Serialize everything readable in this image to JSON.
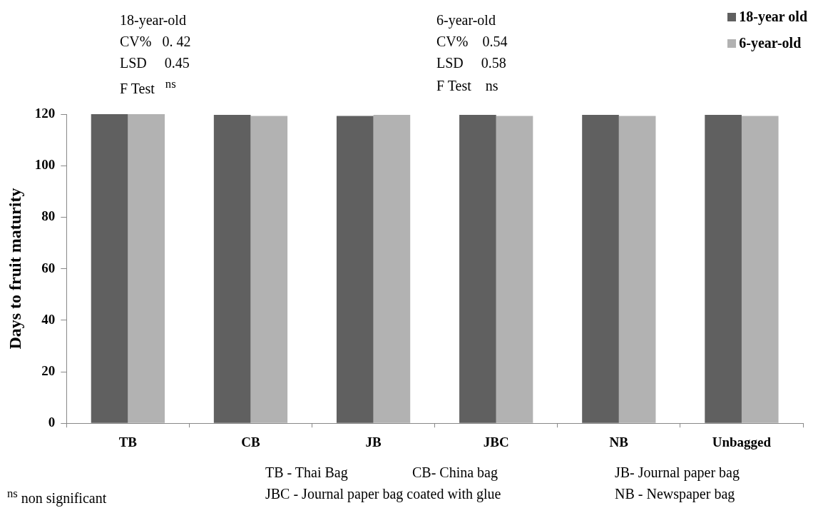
{
  "chart_data": {
    "type": "bar",
    "ylabel": "Days to fruit maturity",
    "categories": [
      "TB",
      "CB",
      "JB",
      "JBC",
      "NB",
      "Unbagged"
    ],
    "series": [
      {
        "name": "18-year old",
        "color": "#606060",
        "values": [
          120,
          119.7,
          119.3,
          119.7,
          119.7,
          119.7
        ]
      },
      {
        "name": "6-year-old",
        "color": "#b2b2b2",
        "values": [
          120,
          119.3,
          119.7,
          119.3,
          119.3,
          119.3
        ]
      }
    ],
    "ylim": [
      0,
      120
    ],
    "yticks": [
      0,
      20,
      40,
      60,
      80,
      100,
      120
    ],
    "grid": false,
    "legend": "top right",
    "annotations": [
      "18-year-old",
      "CV%   0. 42",
      "LSD     0.45",
      "F Test   $^{ns}$",
      "6-year-old",
      "CV%    0.54",
      "LSD     0.58",
      "F Test    ns",
      "TB - Thai Bag",
      "CB- China bag",
      "JB- Journal paper bag",
      "JBC - Journal paper bag coated with glue",
      "NB - Newspaper bag",
      "$^{ns}$ non significant"
    ]
  }
}
